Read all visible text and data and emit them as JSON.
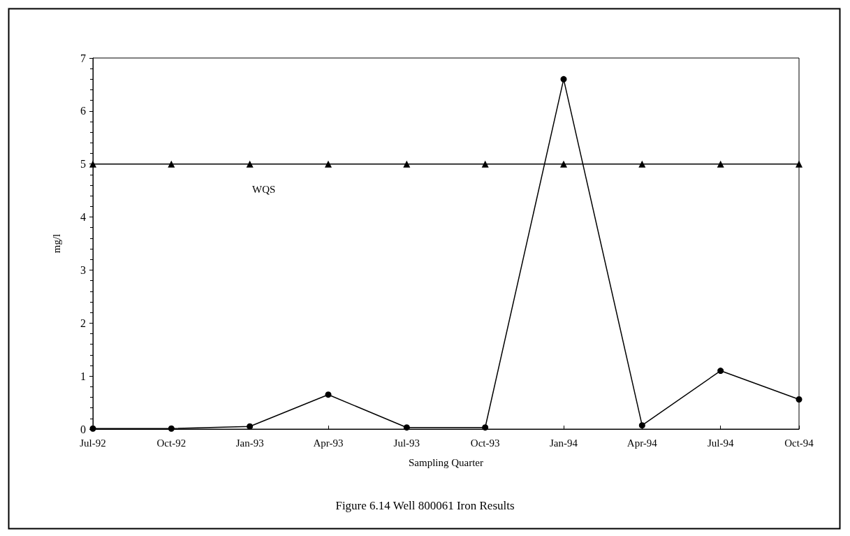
{
  "chart_data": {
    "type": "line",
    "title": "Figure 6.14 Well 800061 Iron Results",
    "xlabel": "Sampling Quarter",
    "ylabel": "mg/l",
    "categories": [
      "Jul-92",
      "Oct-92",
      "Jan-93",
      "Apr-93",
      "Jul-93",
      "Oct-93",
      "Jan-94",
      "Apr-94",
      "Jul-94",
      "Oct-94"
    ],
    "series": [
      {
        "color": "#000000",
        "marker": "circle",
        "values": [
          0.01,
          0.01,
          0.05,
          0.65,
          0.03,
          0.03,
          6.6,
          0.07,
          1.1,
          0.56
        ]
      },
      {
        "name": "WQS",
        "color": "#000000",
        "marker": "triangle",
        "values": [
          5,
          5,
          5,
          5,
          5,
          5,
          5,
          5,
          5,
          5
        ]
      }
    ],
    "ylim": [
      0,
      7
    ],
    "yticks": [
      0,
      1,
      2,
      3,
      4,
      5,
      6,
      7
    ],
    "grid": false,
    "legend": false,
    "line_style": "solid"
  }
}
